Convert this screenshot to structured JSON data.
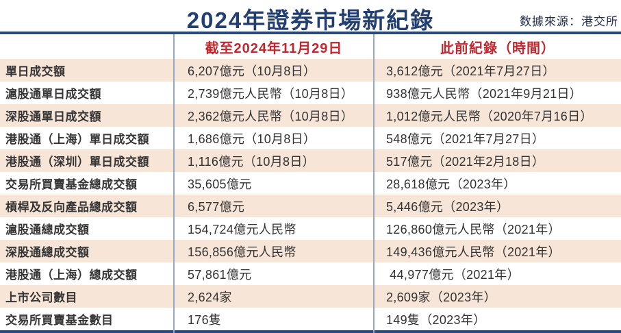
{
  "chart_data": {
    "type": "table",
    "title": "2024年證券市場新紀錄",
    "source": "数據來源：港交所",
    "columns": [
      "",
      "截至2024年11月29日",
      "此前紀錄（時間）"
    ],
    "rows": [
      [
        "單日成交額",
        "6,207億元（10月8日）",
        "3,612億元（2021年7月27日）"
      ],
      [
        "滬股通單日成交額",
        "2,739億元人民幣（10月8日）",
        "938億元人民幣（2021年9月21日）"
      ],
      [
        "深股通單日成交額",
        "2,362億元人民幣（10月8日）",
        "1,012億元人民幣（2020年7月16日）"
      ],
      [
        "港股通（上海）單日成交額",
        "1,686億元（10月8日）",
        "548億元（2021年7月27日）"
      ],
      [
        "港股通（深圳）單日成交額",
        "1,116億元（10月8日）",
        "517億元（2021年2月18日）"
      ],
      [
        "交易所買賣基金總成交額",
        "35,605億元",
        "28,618億元（2023年）"
      ],
      [
        "槓桿及反向產品總成交額",
        "6,577億元",
        "5,446億元（2023年）"
      ],
      [
        "滬股通總成交額",
        "154,724億元人民幣",
        "126,860億元人民幣（2021年）"
      ],
      [
        "深股通總成交額",
        "156,856億元人民幣",
        "149,436億元人民幣（2021年）"
      ],
      [
        "港股通（上海）總成交額",
        "57,861億元",
        " 44,977億元（2021年）"
      ],
      [
        "上市公司數目",
        "2,624家",
        "2,609家（2023年）"
      ],
      [
        "交易所買賣基金數目",
        "176隻",
        "149隻（2023年）"
      ]
    ],
    "layout": {
      "row_striping": "alternating starting peach",
      "header_text_align": "center",
      "value_text_align": "left"
    }
  },
  "colors": {
    "title_navy": "#233f72",
    "header_red": "#c1272d",
    "row_peach": "#f7e5d8",
    "rule_navy": "#27497c",
    "separator_blue": "#93a9c6",
    "text_dark": "#353535"
  }
}
